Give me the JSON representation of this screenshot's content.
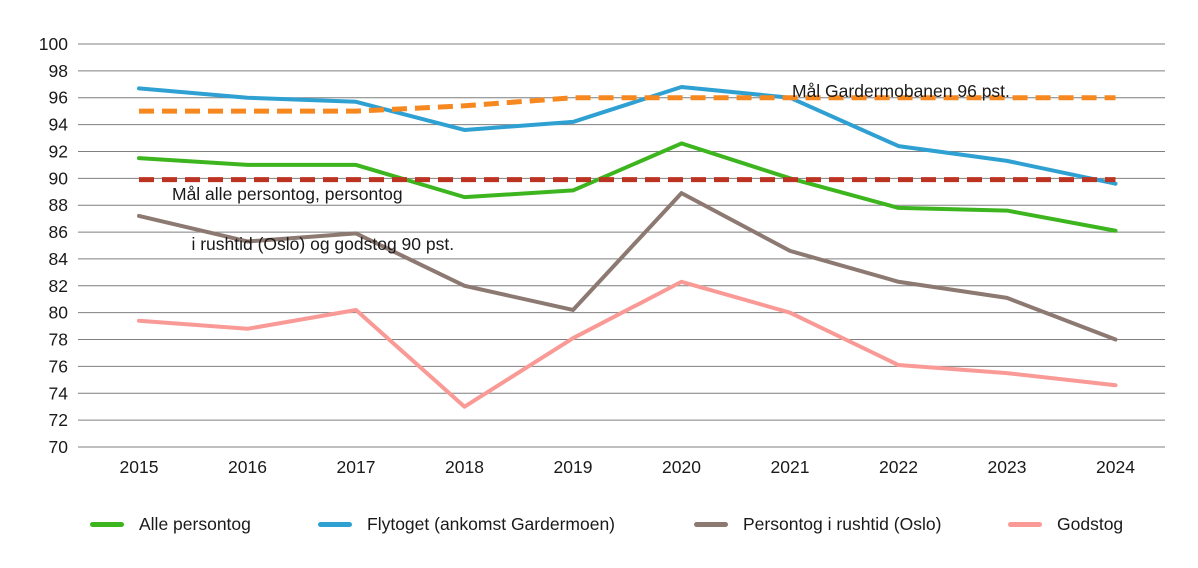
{
  "chart_data": {
    "type": "line",
    "title": "",
    "xlabel": "",
    "ylabel": "",
    "ylim": [
      70,
      100
    ],
    "ytick_step": 2,
    "yticks": [
      70,
      72,
      74,
      76,
      78,
      80,
      82,
      84,
      86,
      88,
      90,
      92,
      94,
      96,
      98,
      100
    ],
    "grid": "horizontal",
    "legend_position": "bottom",
    "categories": [
      "2015",
      "2016",
      "2017",
      "2018",
      "2019",
      "2020",
      "2021",
      "2022",
      "2023",
      "2024"
    ],
    "series": [
      {
        "name": "Alle persontog",
        "color": "#3db51e",
        "style": "solid",
        "values": [
          91.5,
          91.0,
          91.0,
          88.6,
          89.1,
          92.6,
          90.0,
          87.8,
          87.6,
          86.1
        ]
      },
      {
        "name": "Flytoget (ankomst Gardermoen)",
        "color": "#2fa0d2",
        "style": "solid",
        "values": [
          96.7,
          96.0,
          95.7,
          93.6,
          94.2,
          96.8,
          96.0,
          92.4,
          91.3,
          89.6
        ]
      },
      {
        "name": "Persontog i rushtid (Oslo)",
        "color": "#8c7972",
        "style": "solid",
        "values": [
          87.2,
          85.3,
          85.9,
          82.0,
          80.2,
          88.9,
          84.6,
          82.3,
          81.1,
          78.0
        ]
      },
      {
        "name": "Godstog",
        "color": "#fa9a96",
        "style": "solid",
        "values": [
          79.4,
          78.8,
          80.2,
          73.0,
          78.1,
          82.3,
          80.0,
          76.1,
          75.5,
          74.6
        ]
      }
    ],
    "target_lines": [
      {
        "name": "Mål Gardermobanen",
        "label": "Mål Gardermobanen 96 pst.",
        "target_value": 96,
        "color": "#f6881f",
        "style": "dashed",
        "values": [
          95,
          95,
          95,
          95.4,
          96,
          96,
          96,
          96,
          96,
          96
        ]
      },
      {
        "name": "Mål alle persontog, persontog i rushtid (Oslo) og godstog",
        "label": "Mål alle persontog, persontog i rushtid (Oslo) og godstog 90 pst.",
        "target_value": 90,
        "color": "#bc3421",
        "style": "dashed",
        "values": [
          89.9,
          89.9,
          89.9,
          89.9,
          89.9,
          89.9,
          89.9,
          89.9,
          89.9,
          89.9
        ]
      }
    ]
  },
  "annotations": {
    "gardermobanen": "Mål Gardermobanen 96 pst.",
    "persontog_line1": "Mål alle persontog, persontog",
    "persontog_line2": "i rushtid (Oslo) og godstog 90 pst."
  },
  "colors": {
    "gridline": "#7f7f7f",
    "text": "#1a1a1a",
    "background": "#ffffff"
  }
}
